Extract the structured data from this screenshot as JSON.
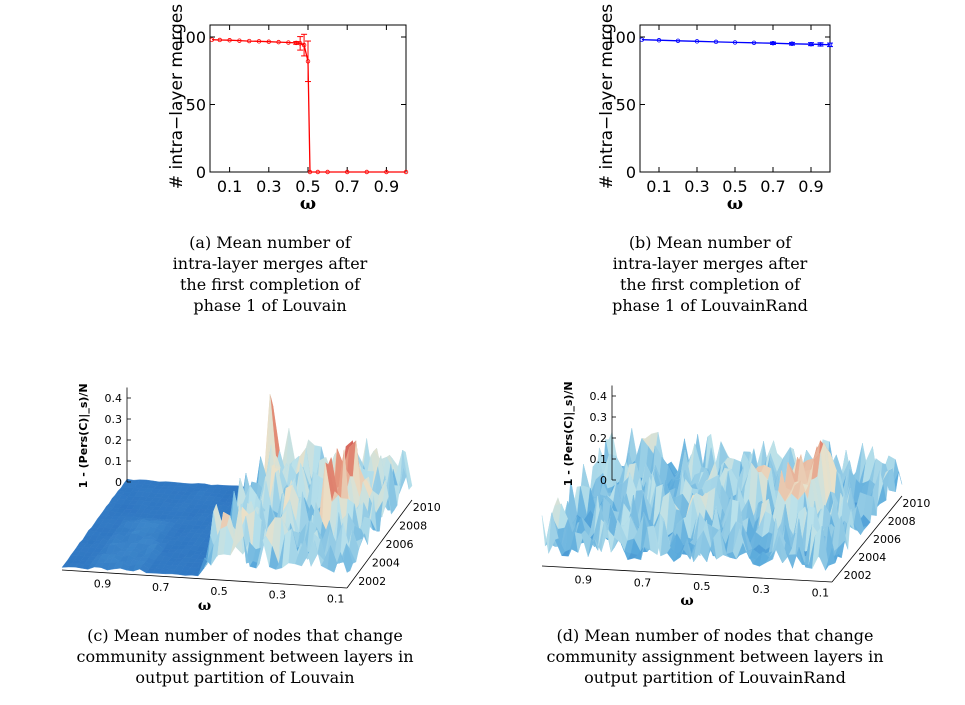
{
  "captions": {
    "a": [
      "(a) Mean number of",
      "intra-layer merges after",
      "the first completion of",
      "phase 1 of Louvain"
    ],
    "b": [
      "(b) Mean number of",
      "intra-layer merges after",
      "the first completion of",
      "phase 1 of LouvainRand"
    ],
    "c": [
      "(c) Mean number of nodes that change",
      "community assignment between layers in",
      "output partition of Louvain"
    ],
    "d": [
      "(d) Mean number of nodes that change",
      "community assignment between layers in",
      "output partition of LouvainRand"
    ]
  },
  "colors": {
    "louvain": "#ff0000",
    "louvainrand": "#0000ff",
    "surface_low": "#2f78c4",
    "surface_high": "#c8393f"
  },
  "chart_data": [
    {
      "id": "a",
      "type": "line",
      "title": "",
      "xlabel": "ω",
      "ylabel": "# intra−layer merges",
      "xlim": [
        0,
        1
      ],
      "ylim": [
        0,
        100
      ],
      "xticks": [
        "0.1",
        "0.3",
        "0.5",
        "0.7",
        "0.9"
      ],
      "yticks": [
        "0",
        "50",
        "100"
      ],
      "series": [
        {
          "x": [
            0.01,
            0.05,
            0.1,
            0.15,
            0.2,
            0.25,
            0.3,
            0.35,
            0.4,
            0.44,
            0.46,
            0.48,
            0.5,
            0.51,
            0.55,
            0.6,
            0.7,
            0.8,
            0.9,
            1.0
          ],
          "y": [
            98,
            97.8,
            97.6,
            97.3,
            97.0,
            96.8,
            96.5,
            96.2,
            95.9,
            95.6,
            95.3,
            94,
            82,
            0,
            0,
            0,
            0,
            0,
            0,
            0
          ],
          "err": [
            0.5,
            0.5,
            0.5,
            0.5,
            0.5,
            0.5,
            0.5,
            0.5,
            0.5,
            1,
            5,
            8,
            15,
            0,
            0,
            0,
            0,
            0,
            0,
            0
          ]
        }
      ]
    },
    {
      "id": "b",
      "type": "line",
      "title": "",
      "xlabel": "ω",
      "ylabel": "# intra−layer merges",
      "xlim": [
        0,
        1
      ],
      "ylim": [
        0,
        100
      ],
      "xticks": [
        "0.1",
        "0.3",
        "0.5",
        "0.7",
        "0.9"
      ],
      "yticks": [
        "0",
        "50",
        "100"
      ],
      "series": [
        {
          "x": [
            0.01,
            0.1,
            0.2,
            0.3,
            0.4,
            0.5,
            0.6,
            0.7,
            0.8,
            0.9,
            0.95,
            1.0
          ],
          "y": [
            98,
            97.6,
            97.2,
            96.8,
            96.4,
            96.0,
            95.7,
            95.4,
            95.0,
            94.7,
            94.5,
            94.2
          ],
          "err": [
            0.6,
            0.6,
            0.6,
            0.6,
            0.7,
            0.7,
            0.8,
            0.9,
            1.0,
            1.1,
            1.2,
            1.3
          ]
        }
      ]
    },
    {
      "id": "c",
      "type": "area",
      "title": "",
      "xlabel": "ω",
      "ylabel": "1 - (Pers(C)|_s)/N",
      "xticks": [
        "0.9",
        "0.7",
        "0.5",
        "0.3",
        "0.1"
      ],
      "zticks": [
        "0",
        "0.1",
        "0.2",
        "0.3",
        "0.4"
      ],
      "yticks": [
        "2002",
        "2004",
        "2006",
        "2008",
        "2010"
      ]
    },
    {
      "id": "d",
      "type": "area",
      "title": "",
      "xlabel": "ω",
      "ylabel": "1 - (Pers(C)|_s)/N",
      "xticks": [
        "0.9",
        "0.7",
        "0.5",
        "0.3",
        "0.1"
      ],
      "zticks": [
        "0",
        "0.1",
        "0.2",
        "0.3",
        "0.4"
      ],
      "yticks": [
        "2002",
        "2004",
        "2006",
        "2008",
        "2010"
      ]
    }
  ]
}
